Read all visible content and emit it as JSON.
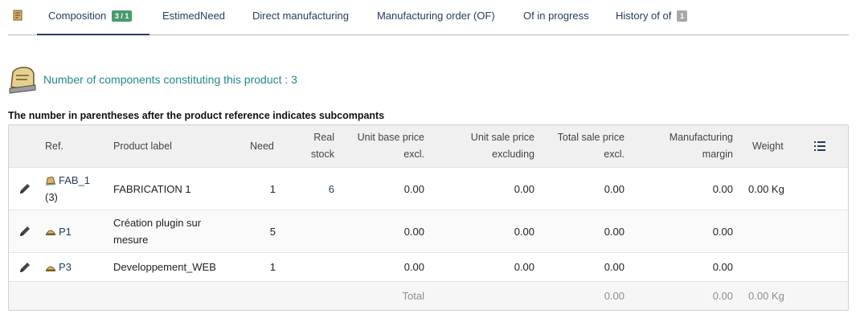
{
  "tabs": [
    {
      "label": "Composition",
      "badge": "3 / 1"
    },
    {
      "label": "EstimedNeed"
    },
    {
      "label": "Direct manufacturing"
    },
    {
      "label": "Manufacturing order (OF)"
    },
    {
      "label": "Of in progress"
    },
    {
      "label": "History of of",
      "badge": "1"
    }
  ],
  "heading": "Number of components constituting this product : 3",
  "note": "The number in parentheses after the product reference indicates subcompants",
  "table": {
    "headers": {
      "ref": "Ref.",
      "label": "Product label",
      "need": "Need",
      "stock_l1": "Real",
      "stock_l2": "stock",
      "ubp_l1": "Unit base price",
      "ubp_l2": "excl.",
      "usp_l1": "Unit sale price",
      "usp_l2": "excluding",
      "tsp_l1": "Total sale price",
      "tsp_l2": "excl.",
      "mm_l1": "Manufacturing",
      "mm_l2": "margin",
      "weight": "Weight"
    },
    "rows": [
      {
        "ref": "FAB_1",
        "sub": "(3)",
        "label": "FABRICATION 1",
        "need": "1",
        "stock": "6",
        "ubp": "0.00",
        "usp": "0.00",
        "tsp": "0.00",
        "margin": "0.00",
        "weight": "0.00 Kg"
      },
      {
        "ref": "P1",
        "label_l1": "Création plugin sur",
        "label_l2": "mesure",
        "need": "5",
        "ubp": "0.00",
        "usp": "0.00",
        "tsp": "0.00",
        "margin": "0.00"
      },
      {
        "ref": "P3",
        "label": "Developpement_WEB",
        "need": "1",
        "ubp": "0.00",
        "usp": "0.00",
        "tsp": "0.00",
        "margin": "0.00"
      }
    ],
    "total": {
      "label": "Total",
      "tsp": "0.00",
      "margin": "0.00",
      "weight": "0.00 Kg"
    }
  },
  "icons": {
    "tab_icon": "manufacturing-bom-icon",
    "heading_icon": "manufacturing-bom-icon",
    "edit": "pencil-icon",
    "product": "product-icon",
    "columns": "list-icon"
  },
  "colors": {
    "link": "#263c5c",
    "heading": "#23888b",
    "badge_green": "#4a9b6e",
    "badge_grey": "#a8a8a8"
  }
}
